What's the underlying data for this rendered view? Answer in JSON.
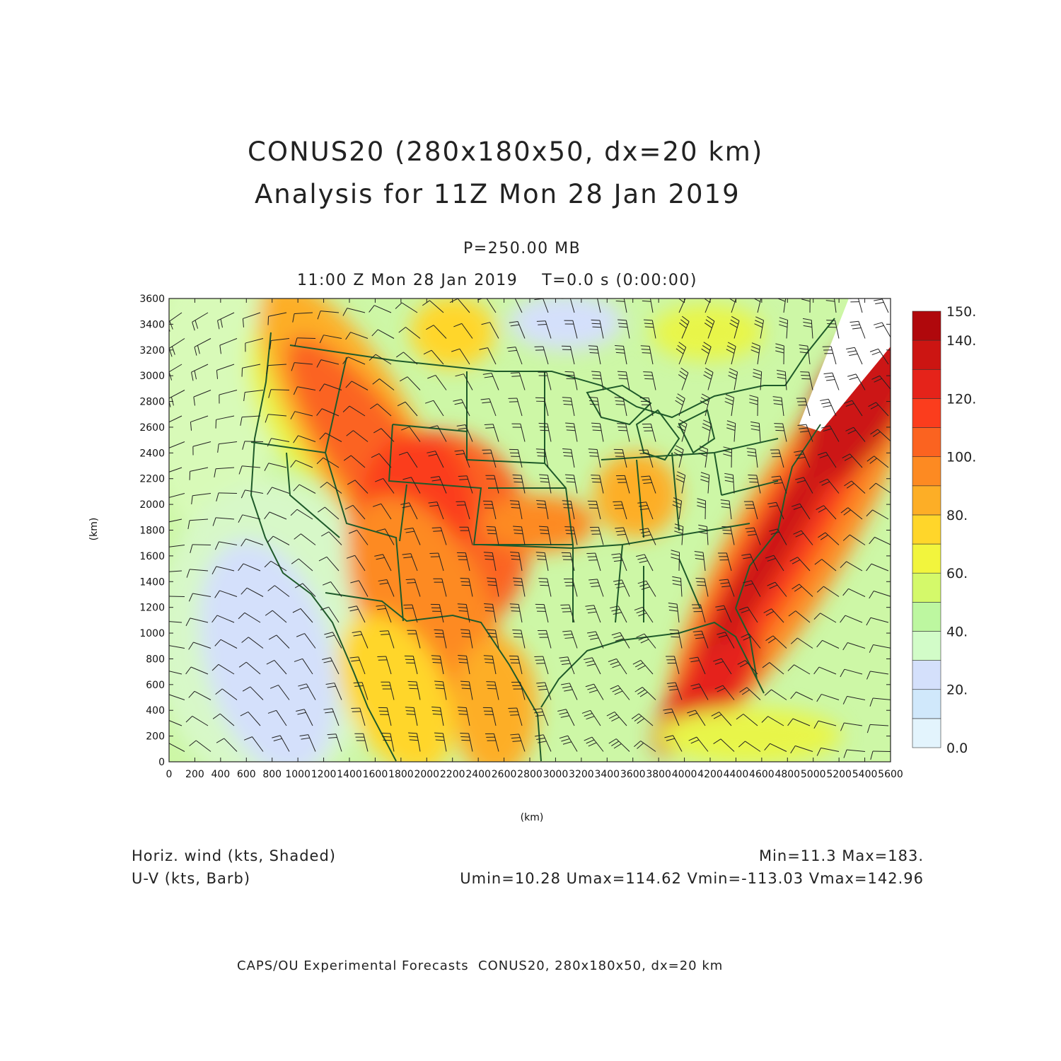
{
  "header": {
    "title_line1": "CONUS20 (280x180x50, dx=20 km)",
    "title_line2": "Analysis for 11Z Mon 28 Jan 2019",
    "level": "P=250.00 MB",
    "valid_time": "11:00 Z Mon 28 Jan 2019    T=0.0 s (0:00:00)"
  },
  "map": {
    "x_axis_label": "(km)",
    "y_axis_label": "(km)",
    "x_ticks": [
      "0",
      "200",
      "400",
      "600",
      "800",
      "1000",
      "1200",
      "1400",
      "1600",
      "1800",
      "2000",
      "2200",
      "2400",
      "2600",
      "2800",
      "3000",
      "3200",
      "3400",
      "3600",
      "3800",
      "4000",
      "4200",
      "4400",
      "4600",
      "4800",
      "5000",
      "5200",
      "5400",
      "5600"
    ],
    "y_ticks": [
      "0",
      "200",
      "400",
      "600",
      "800",
      "1000",
      "1200",
      "1400",
      "1600",
      "1800",
      "2000",
      "2200",
      "2400",
      "2600",
      "2800",
      "3000",
      "3200",
      "3400",
      "3600"
    ],
    "x_range_km": [
      0,
      5600
    ],
    "y_range_km": [
      0,
      3600
    ],
    "boundary_color": "#1f5a2a",
    "barb_color": "#222222"
  },
  "colorbar": {
    "labels": [
      "0.0",
      "20.",
      "40.",
      "60.",
      "80.",
      "100.",
      "120.",
      "140.",
      "150."
    ],
    "colors": [
      "#e3f4fd",
      "#d0e8fb",
      "#d4e0fb",
      "#d2fcc8",
      "#bdf7a0",
      "#d4f96a",
      "#f2f53d",
      "#ffd62a",
      "#fdae26",
      "#fd8a22",
      "#fb6320",
      "#fb3d1d",
      "#e5231a",
      "#cc1512",
      "#b0080c"
    ]
  },
  "footer": {
    "field1_label": "Horiz. wind (kts, Shaded)",
    "field1_stats": "Min=11.3 Max=183.",
    "field2_label": "U-V (kts, Barb)",
    "field2_stats": "Umin=10.28 Umax=114.62 Vmin=-113.03 Vmax=142.96",
    "credit": "CAPS/OU Experimental Forecasts  CONUS20, 280x180x50, dx=20 km"
  }
}
